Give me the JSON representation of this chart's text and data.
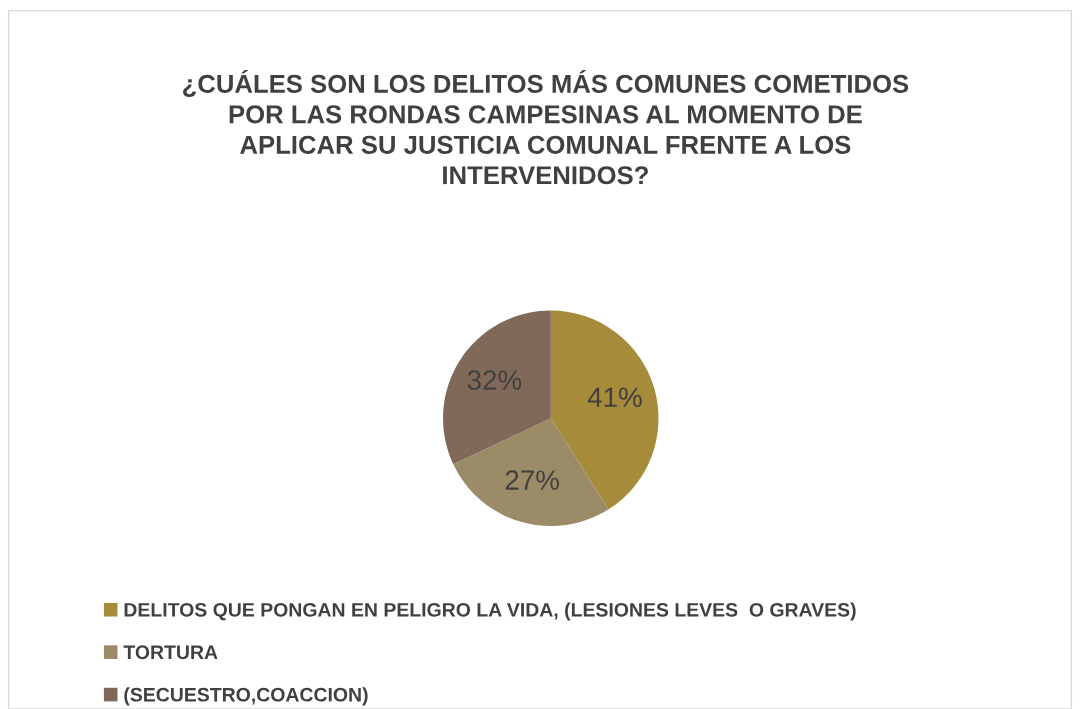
{
  "chart_data": {
    "type": "pie",
    "title": "¿CUÁLES SON LOS DELITOS MÁS COMUNES COMETIDOS\nPOR LAS RONDAS CAMPESINAS AL MOMENTO DE\nAPLICAR SU JUSTICIA COMUNAL FRENTE A LOS\nINTERVENIDOS?",
    "categories": [
      "DELITOS QUE PONGAN EN PELIGRO LA VIDA, (LESIONES LEVES  O GRAVES)",
      "TORTURA",
      "(SECUESTRO,COACCION)"
    ],
    "values": [
      41,
      27,
      32
    ],
    "colors": [
      "#a68b3a",
      "#9b8b66",
      "#806958"
    ],
    "value_labels": [
      "41%",
      "27%",
      "32%"
    ],
    "legend": "bottom"
  }
}
